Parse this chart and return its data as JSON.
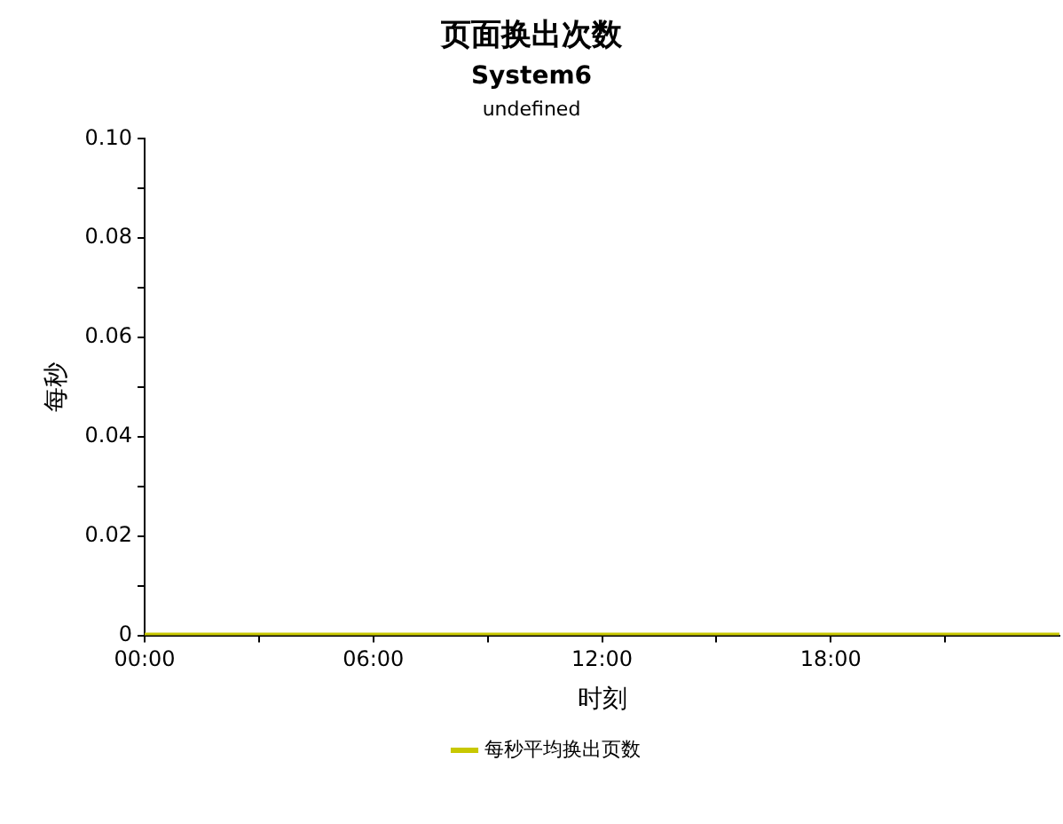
{
  "chart_data": {
    "type": "line",
    "title": "页面换出次数",
    "subtitle": "System6",
    "annotations": [
      "undefined"
    ],
    "xlabel": "时刻",
    "ylabel": "每秒",
    "x": [
      0,
      24
    ],
    "series": [
      {
        "name": "每秒平均换出页数",
        "color": "#c8c800",
        "values": [
          0,
          0
        ]
      }
    ],
    "xlim": [
      0,
      24
    ],
    "xticks": [
      {
        "value": 0,
        "label": "00:00"
      },
      {
        "value": 3,
        "label": null
      },
      {
        "value": 6,
        "label": "06:00"
      },
      {
        "value": 9,
        "label": null
      },
      {
        "value": 12,
        "label": "12:00"
      },
      {
        "value": 15,
        "label": null
      },
      {
        "value": 18,
        "label": "18:00"
      },
      {
        "value": 21,
        "label": null
      }
    ],
    "ylim": [
      0,
      0.1
    ],
    "yticks": [
      0,
      {
        "value": 0.01,
        "label": null
      },
      0.02,
      {
        "value": 0.03,
        "label": null
      },
      0.04,
      {
        "value": 0.05,
        "label": null
      },
      0.06,
      {
        "value": 0.07,
        "label": null
      },
      0.08,
      {
        "value": 0.09,
        "label": null
      },
      {
        "value": 0.1,
        "label": "0.10"
      }
    ],
    "grid": false,
    "legend": "bottom",
    "marker": "none",
    "line_style": "solid"
  }
}
